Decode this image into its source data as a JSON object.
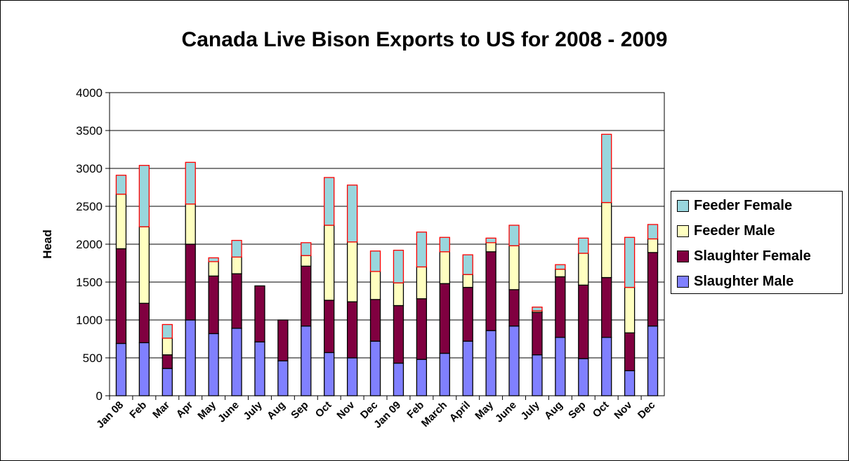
{
  "chart_data": {
    "type": "bar",
    "stacked": true,
    "title": "Canada Live Bison Exports to US for 2008 - 2009",
    "ylabel": "Head",
    "xlabel": "",
    "ylim": [
      0,
      4000
    ],
    "yticks": [
      0,
      500,
      1000,
      1500,
      2000,
      2500,
      3000,
      3500,
      4000
    ],
    "grid": true,
    "legend_position": "right",
    "categories": [
      "Jan 08",
      "Feb",
      "Mar",
      "Apr",
      "May",
      "June",
      "July",
      "Aug",
      "Sep",
      "Oct",
      "Nov",
      "Dec",
      "Jan 09",
      "Feb",
      "March",
      "April",
      "May",
      "June",
      "July",
      "Aug",
      "Sep",
      "Oct",
      "Nov",
      "Dec"
    ],
    "series": [
      {
        "name": "Slaughter Male",
        "color": "#8080ff",
        "values": [
          690,
          700,
          360,
          1000,
          820,
          890,
          710,
          460,
          920,
          570,
          500,
          720,
          430,
          480,
          560,
          720,
          860,
          920,
          540,
          770,
          490,
          770,
          330,
          920
        ]
      },
      {
        "name": "Slaughter Female",
        "color": "#800040",
        "values": [
          1250,
          520,
          180,
          1000,
          760,
          720,
          740,
          540,
          790,
          690,
          740,
          550,
          760,
          800,
          920,
          710,
          1040,
          480,
          560,
          800,
          970,
          790,
          500,
          970
        ]
      },
      {
        "name": "Feeder Male",
        "color": "#ffffc0",
        "values": [
          720,
          1010,
          220,
          530,
          190,
          220,
          0,
          0,
          140,
          990,
          790,
          370,
          300,
          420,
          420,
          170,
          120,
          580,
          20,
          100,
          420,
          990,
          600,
          180
        ]
      },
      {
        "name": "Feeder Female",
        "color": "#99d6dd",
        "values": [
          250,
          810,
          180,
          550,
          50,
          220,
          0,
          0,
          170,
          630,
          750,
          270,
          430,
          460,
          190,
          260,
          60,
          270,
          50,
          60,
          200,
          900,
          660,
          190
        ]
      }
    ]
  }
}
